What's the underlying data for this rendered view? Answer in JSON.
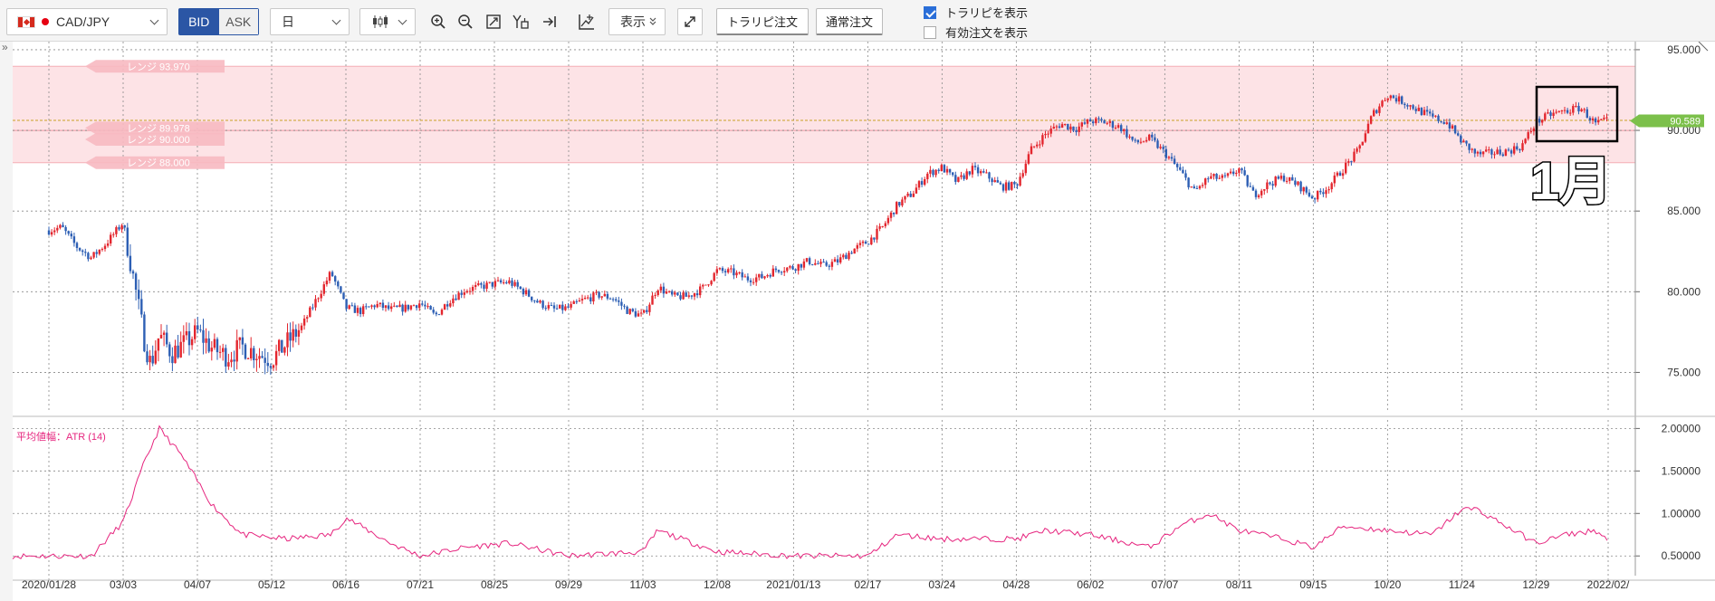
{
  "toolbar": {
    "symbol": "CAD/JPY",
    "bid_label": "BID",
    "ask_label": "ASK",
    "period": "日",
    "display_label": "表示",
    "torarepi_order": "トラリピ注文",
    "normal_order": "通常注文",
    "show_torarepi": "トラリピを表示",
    "show_torarepi_checked": true,
    "show_active_orders": "有効注文を表示",
    "show_active_orders_checked": false
  },
  "chart": {
    "collapse_label": "»",
    "range_labels": [
      "レンジ 93.970",
      "レンジ 89.978",
      "レンジ 90.000",
      "レンジ 88.000"
    ],
    "current_price": "90.589",
    "annotation": "1月",
    "atr_label": "平均値幅：ATR (14)",
    "colors": {
      "up": "#e3262e",
      "down": "#2d5fb4",
      "range_fill": "#fde3e6",
      "atr_line": "#e6247e",
      "price_tag": "#7cc04b",
      "bid_line": "#c9a227"
    }
  },
  "chart_data": [
    {
      "type": "candlestick",
      "title": "CAD/JPY 日足",
      "x_tick_labels": [
        "2020/01/28",
        "03/03",
        "04/07",
        "05/12",
        "06/16",
        "07/21",
        "08/25",
        "09/29",
        "11/03",
        "12/08",
        "2021/01/13",
        "02/17",
        "03/24",
        "04/28",
        "06/02",
        "07/07",
        "08/11",
        "09/15",
        "10/20",
        "11/24",
        "12/29",
        "2022/02/"
      ],
      "y_tick_labels": [
        "75.000",
        "80.000",
        "85.000",
        "90.000",
        "95.000"
      ],
      "ylim": [
        72.5,
        95.5
      ],
      "series": [
        {
          "name": "CAD/JPY",
          "close_path": [
            {
              "x": "2020/01/28",
              "y": 83.8
            },
            {
              "x": "2020/02/03",
              "y": 84.0
            },
            {
              "x": "2020/02/10",
              "y": 82.8
            },
            {
              "x": "2020/02/17",
              "y": 82.1
            },
            {
              "x": "2020/02/24",
              "y": 83.0
            },
            {
              "x": "2020/03/03",
              "y": 84.3
            },
            {
              "x": "2020/03/09",
              "y": 80.0
            },
            {
              "x": "2020/03/13",
              "y": 77.0
            },
            {
              "x": "2020/03/16",
              "y": 75.5
            },
            {
              "x": "2020/03/20",
              "y": 77.3
            },
            {
              "x": "2020/03/26",
              "y": 76.2
            },
            {
              "x": "2020/04/01",
              "y": 76.8
            },
            {
              "x": "2020/04/07",
              "y": 77.5
            },
            {
              "x": "2020/04/14",
              "y": 76.5
            },
            {
              "x": "2020/04/21",
              "y": 76.0
            },
            {
              "x": "2020/04/28",
              "y": 76.6
            },
            {
              "x": "2020/05/05",
              "y": 76.2
            },
            {
              "x": "2020/05/12",
              "y": 75.8
            },
            {
              "x": "2020/05/19",
              "y": 76.8
            },
            {
              "x": "2020/05/26",
              "y": 77.8
            },
            {
              "x": "2020/06/02",
              "y": 79.5
            },
            {
              "x": "2020/06/09",
              "y": 81.2
            },
            {
              "x": "2020/06/16",
              "y": 79.0
            },
            {
              "x": "2020/06/23",
              "y": 78.8
            },
            {
              "x": "2020/06/30",
              "y": 79.2
            },
            {
              "x": "2020/07/07",
              "y": 78.9
            },
            {
              "x": "2020/07/14",
              "y": 79.0
            },
            {
              "x": "2020/07/21",
              "y": 79.3
            },
            {
              "x": "2020/07/28",
              "y": 78.5
            },
            {
              "x": "2020/08/04",
              "y": 79.5
            },
            {
              "x": "2020/08/11",
              "y": 80.1
            },
            {
              "x": "2020/08/18",
              "y": 80.3
            },
            {
              "x": "2020/08/25",
              "y": 80.5
            },
            {
              "x": "2020/09/01",
              "y": 80.6
            },
            {
              "x": "2020/09/08",
              "y": 80.0
            },
            {
              "x": "2020/09/15",
              "y": 79.3
            },
            {
              "x": "2020/09/22",
              "y": 78.9
            },
            {
              "x": "2020/09/29",
              "y": 79.0
            },
            {
              "x": "2020/10/06",
              "y": 79.5
            },
            {
              "x": "2020/10/13",
              "y": 79.8
            },
            {
              "x": "2020/10/20",
              "y": 79.6
            },
            {
              "x": "2020/10/27",
              "y": 78.8
            },
            {
              "x": "2020/11/03",
              "y": 78.5
            },
            {
              "x": "2020/11/10",
              "y": 80.3
            },
            {
              "x": "2020/11/17",
              "y": 79.7
            },
            {
              "x": "2020/11/24",
              "y": 79.7
            },
            {
              "x": "2020/12/01",
              "y": 80.2
            },
            {
              "x": "2020/12/08",
              "y": 81.3
            },
            {
              "x": "2020/12/15",
              "y": 81.2
            },
            {
              "x": "2020/12/22",
              "y": 80.8
            },
            {
              "x": "2020/12/29",
              "y": 80.9
            },
            {
              "x": "2021/01/05",
              "y": 81.4
            },
            {
              "x": "2021/01/13",
              "y": 81.5
            },
            {
              "x": "2021/01/20",
              "y": 81.9
            },
            {
              "x": "2021/01/27",
              "y": 81.6
            },
            {
              "x": "2021/02/03",
              "y": 81.9
            },
            {
              "x": "2021/02/10",
              "y": 82.6
            },
            {
              "x": "2021/02/17",
              "y": 83.1
            },
            {
              "x": "2021/02/24",
              "y": 84.0
            },
            {
              "x": "2021/03/03",
              "y": 85.4
            },
            {
              "x": "2021/03/10",
              "y": 86.1
            },
            {
              "x": "2021/03/17",
              "y": 87.3
            },
            {
              "x": "2021/03/24",
              "y": 87.7
            },
            {
              "x": "2021/03/31",
              "y": 86.8
            },
            {
              "x": "2021/04/07",
              "y": 87.6
            },
            {
              "x": "2021/04/14",
              "y": 87.2
            },
            {
              "x": "2021/04/21",
              "y": 86.5
            },
            {
              "x": "2021/04/28",
              "y": 86.6
            },
            {
              "x": "2021/05/05",
              "y": 88.8
            },
            {
              "x": "2021/05/12",
              "y": 89.8
            },
            {
              "x": "2021/05/19",
              "y": 90.4
            },
            {
              "x": "2021/05/26",
              "y": 90.1
            },
            {
              "x": "2021/06/02",
              "y": 90.6
            },
            {
              "x": "2021/06/09",
              "y": 90.5
            },
            {
              "x": "2021/06/16",
              "y": 90.2
            },
            {
              "x": "2021/06/23",
              "y": 89.2
            },
            {
              "x": "2021/06/30",
              "y": 89.5
            },
            {
              "x": "2021/07/07",
              "y": 88.6
            },
            {
              "x": "2021/07/14",
              "y": 87.5
            },
            {
              "x": "2021/07/21",
              "y": 86.2
            },
            {
              "x": "2021/07/28",
              "y": 87.1
            },
            {
              "x": "2021/08/04",
              "y": 87.0
            },
            {
              "x": "2021/08/11",
              "y": 87.6
            },
            {
              "x": "2021/08/18",
              "y": 86.0
            },
            {
              "x": "2021/08/25",
              "y": 86.7
            },
            {
              "x": "2021/09/01",
              "y": 87.1
            },
            {
              "x": "2021/09/08",
              "y": 86.6
            },
            {
              "x": "2021/09/15",
              "y": 85.8
            },
            {
              "x": "2021/09/22",
              "y": 86.5
            },
            {
              "x": "2021/09/29",
              "y": 87.6
            },
            {
              "x": "2021/10/06",
              "y": 88.7
            },
            {
              "x": "2021/10/13",
              "y": 91.0
            },
            {
              "x": "2021/10/20",
              "y": 92.2
            },
            {
              "x": "2021/10/27",
              "y": 91.8
            },
            {
              "x": "2021/11/03",
              "y": 91.3
            },
            {
              "x": "2021/11/10",
              "y": 90.8
            },
            {
              "x": "2021/11/17",
              "y": 90.5
            },
            {
              "x": "2021/11/24",
              "y": 89.3
            },
            {
              "x": "2021/12/01",
              "y": 88.5
            },
            {
              "x": "2021/12/08",
              "y": 88.6
            },
            {
              "x": "2021/12/15",
              "y": 88.7
            },
            {
              "x": "2021/12/22",
              "y": 89.0
            },
            {
              "x": "2021/12/29",
              "y": 90.5
            },
            {
              "x": "2022/01/05",
              "y": 91.0
            },
            {
              "x": "2022/01/12",
              "y": 91.2
            },
            {
              "x": "2022/01/19",
              "y": 91.4
            },
            {
              "x": "2022/01/26",
              "y": 90.4
            },
            {
              "x": "2022/02/01",
              "y": 90.6
            }
          ]
        }
      ],
      "horizontal_levels": [
        {
          "label": "レンジ 93.970",
          "value": 93.97
        },
        {
          "label": "レンジ 89.978",
          "value": 89.978
        },
        {
          "label": "レンジ 90.000",
          "value": 90.0
        },
        {
          "label": "レンジ 88.000",
          "value": 88.0
        }
      ],
      "current_price": 90.589,
      "range_band": [
        88.0,
        93.97
      ],
      "grid": true
    },
    {
      "type": "line",
      "title": "平均値幅：ATR (14)",
      "y_tick_labels": [
        "0.50000",
        "1.00000",
        "1.50000",
        "2.00000"
      ],
      "ylim": [
        0.3,
        2.1
      ],
      "series": [
        {
          "name": "ATR (14)",
          "points": [
            {
              "x": "2020/01/28",
              "y": 0.5
            },
            {
              "x": "2020/02/17",
              "y": 0.5
            },
            {
              "x": "2020/03/03",
              "y": 0.9
            },
            {
              "x": "2020/03/13",
              "y": 1.6
            },
            {
              "x": "2020/03/20",
              "y": 2.0
            },
            {
              "x": "2020/03/30",
              "y": 1.7
            },
            {
              "x": "2020/04/14",
              "y": 1.1
            },
            {
              "x": "2020/04/28",
              "y": 0.75
            },
            {
              "x": "2020/05/19",
              "y": 0.7
            },
            {
              "x": "2020/06/09",
              "y": 0.75
            },
            {
              "x": "2020/06/16",
              "y": 0.95
            },
            {
              "x": "2020/07/07",
              "y": 0.65
            },
            {
              "x": "2020/07/21",
              "y": 0.5
            },
            {
              "x": "2020/08/11",
              "y": 0.6
            },
            {
              "x": "2020/09/01",
              "y": 0.65
            },
            {
              "x": "2020/09/29",
              "y": 0.5
            },
            {
              "x": "2020/11/03",
              "y": 0.55
            },
            {
              "x": "2020/11/10",
              "y": 0.8
            },
            {
              "x": "2020/12/08",
              "y": 0.55
            },
            {
              "x": "2021/01/13",
              "y": 0.5
            },
            {
              "x": "2021/02/17",
              "y": 0.5
            },
            {
              "x": "2021/03/03",
              "y": 0.75
            },
            {
              "x": "2021/03/24",
              "y": 0.7
            },
            {
              "x": "2021/04/28",
              "y": 0.7
            },
            {
              "x": "2021/05/12",
              "y": 0.8
            },
            {
              "x": "2021/06/02",
              "y": 0.75
            },
            {
              "x": "2021/06/30",
              "y": 0.6
            },
            {
              "x": "2021/07/14",
              "y": 0.85
            },
            {
              "x": "2021/07/28",
              "y": 1.0
            },
            {
              "x": "2021/08/11",
              "y": 0.8
            },
            {
              "x": "2021/09/01",
              "y": 0.7
            },
            {
              "x": "2021/09/15",
              "y": 0.6
            },
            {
              "x": "2021/09/29",
              "y": 0.85
            },
            {
              "x": "2021/10/20",
              "y": 0.8
            },
            {
              "x": "2021/11/10",
              "y": 0.75
            },
            {
              "x": "2021/11/24",
              "y": 1.05
            },
            {
              "x": "2021/12/01",
              "y": 1.05
            },
            {
              "x": "2021/12/22",
              "y": 0.75
            },
            {
              "x": "2021/12/29",
              "y": 0.65
            },
            {
              "x": "2022/01/12",
              "y": 0.75
            },
            {
              "x": "2022/01/26",
              "y": 0.8
            },
            {
              "x": "2022/02/01",
              "y": 0.68
            }
          ]
        }
      ],
      "grid": true
    }
  ]
}
